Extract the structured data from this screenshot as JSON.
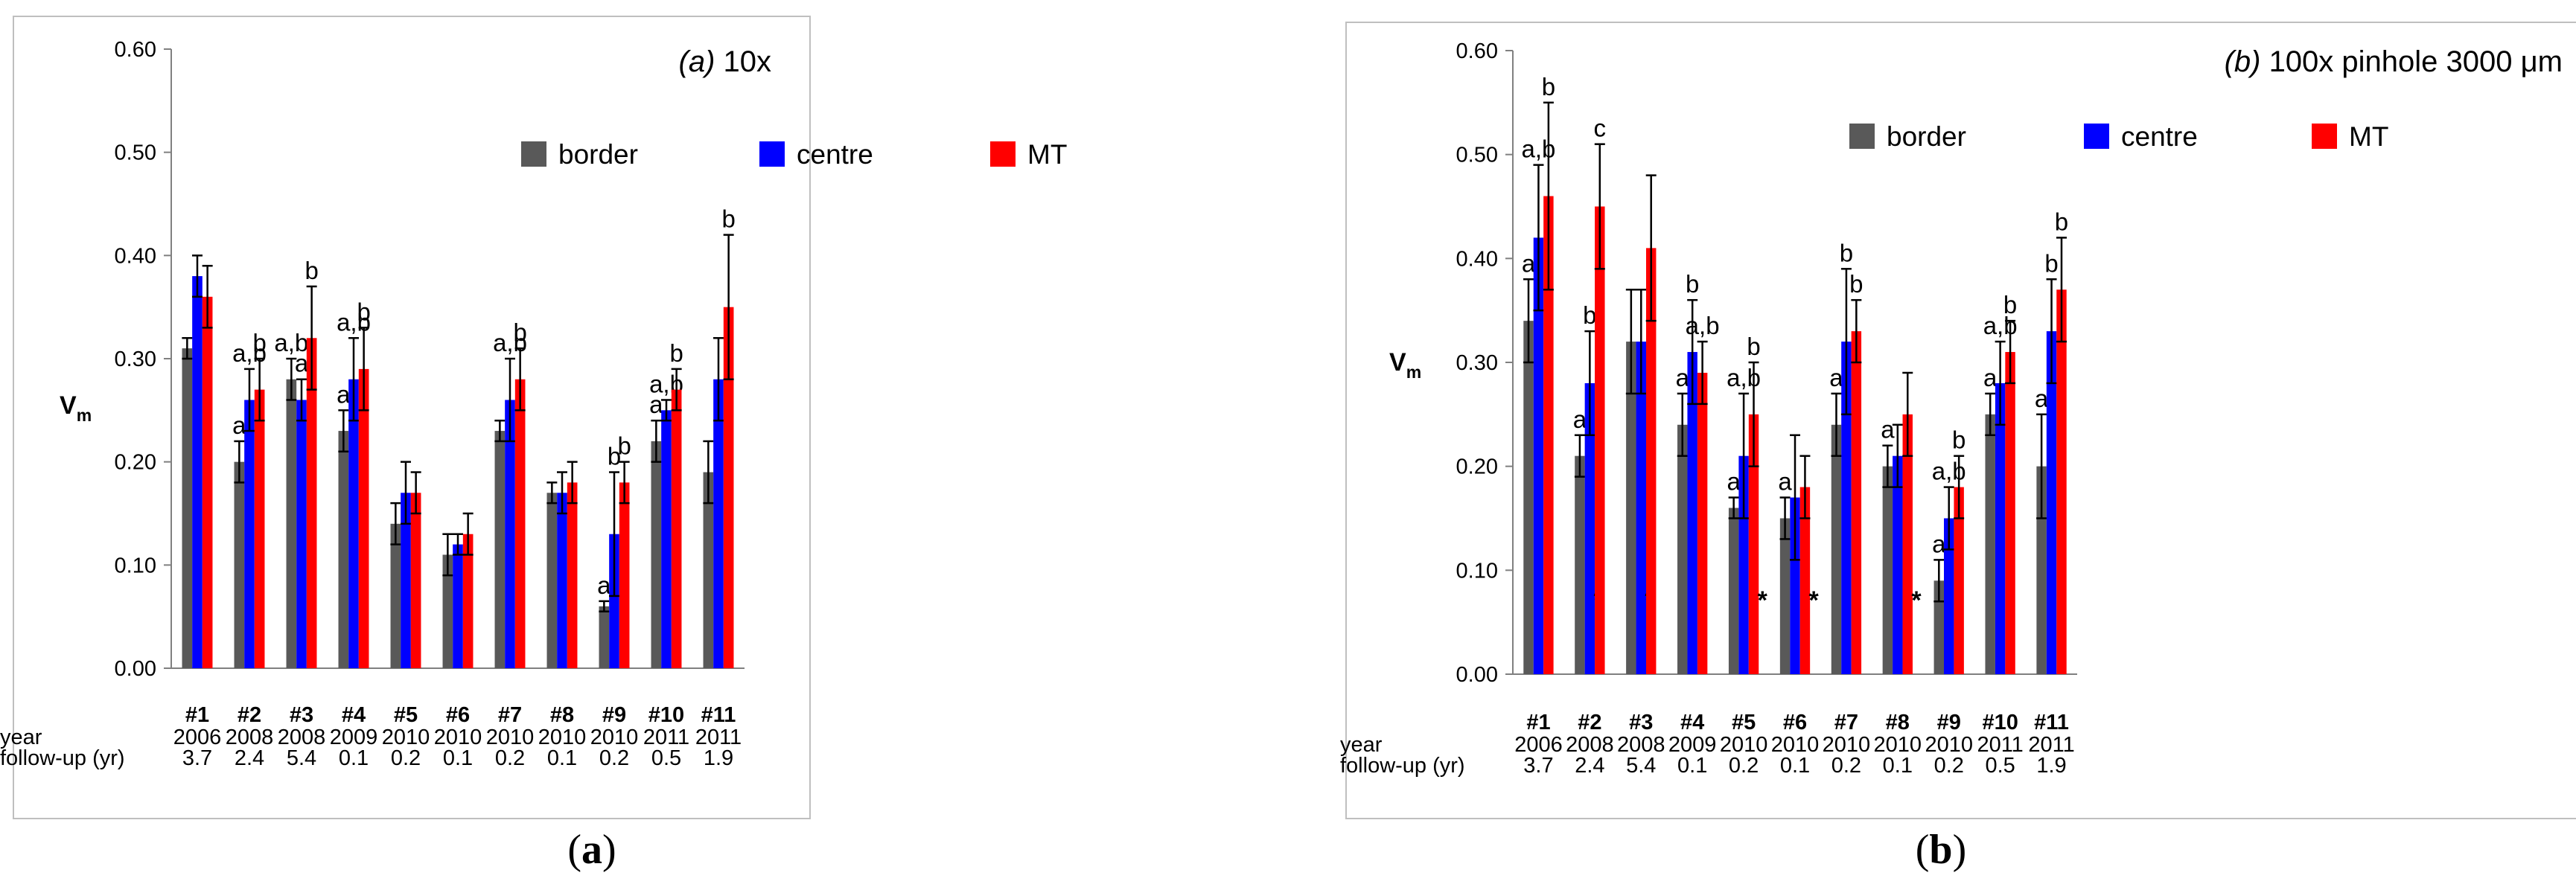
{
  "colors": {
    "border": "#595959",
    "centre": "#0000ff",
    "MT": "#ff0000",
    "axis": "#808080",
    "frame": "#bfbfbf"
  },
  "chart_data": [
    {
      "type": "bar",
      "panel_caption": "(a)",
      "title_prefix": "(a)",
      "title_suffix": "10x",
      "ylabel": "V",
      "ylabel_sub": "m",
      "ylim": [
        0,
        0.6
      ],
      "yticks": [
        "0.00",
        "0.10",
        "0.20",
        "0.30",
        "0.40",
        "0.50",
        "0.60"
      ],
      "grid": false,
      "legend_position": "top-right",
      "categories": [
        "#1",
        "#2",
        "#3",
        "#4",
        "#5",
        "#6",
        "#7",
        "#8",
        "#9",
        "#10",
        "#11"
      ],
      "row_labels": {
        "year": "year",
        "follow_up": "follow-up (yr)"
      },
      "years": [
        "2006",
        "2008",
        "2008",
        "2009",
        "2010",
        "2010",
        "2010",
        "2010",
        "2010",
        "2011",
        "2011"
      ],
      "follow_up": [
        "3.7",
        "2.4",
        "5.4",
        "0.1",
        "0.2",
        "0.1",
        "0.2",
        "0.1",
        "0.2",
        "0.5",
        "1.9"
      ],
      "series": [
        {
          "name": "border",
          "color": "#595959",
          "values": [
            0.31,
            0.2,
            0.28,
            0.23,
            0.14,
            0.11,
            0.23,
            0.17,
            0.06,
            0.22,
            0.19
          ],
          "errors": [
            0.01,
            0.02,
            0.02,
            0.02,
            0.02,
            0.02,
            0.01,
            0.01,
            0.005,
            0.02,
            0.03
          ],
          "labels": [
            "",
            "a",
            "a,b",
            "a",
            "",
            "",
            "",
            "",
            "a",
            "a",
            ""
          ],
          "stars": [
            false,
            false,
            false,
            false,
            false,
            false,
            false,
            false,
            false,
            false,
            false
          ]
        },
        {
          "name": "centre",
          "color": "#0000ff",
          "values": [
            0.38,
            0.26,
            0.26,
            0.28,
            0.17,
            0.12,
            0.26,
            0.17,
            0.13,
            0.25,
            0.28
          ],
          "errors": [
            0.02,
            0.03,
            0.02,
            0.04,
            0.03,
            0.01,
            0.04,
            0.02,
            0.06,
            0.01,
            0.04
          ],
          "labels": [
            "",
            "a,b",
            "a",
            "a,b",
            "",
            "",
            "a,b",
            "",
            "b",
            "a,b",
            ""
          ],
          "stars": [
            false,
            false,
            false,
            false,
            false,
            false,
            false,
            false,
            false,
            false,
            false
          ]
        },
        {
          "name": "MT",
          "color": "#ff0000",
          "values": [
            0.36,
            0.27,
            0.32,
            0.29,
            0.17,
            0.13,
            0.28,
            0.18,
            0.18,
            0.27,
            0.35
          ],
          "errors": [
            0.03,
            0.03,
            0.05,
            0.04,
            0.02,
            0.02,
            0.03,
            0.02,
            0.02,
            0.02,
            0.07
          ],
          "labels": [
            "",
            "b",
            "b",
            "b",
            "",
            "",
            "b",
            "",
            "b",
            "b",
            "b"
          ],
          "stars": [
            false,
            false,
            false,
            false,
            false,
            false,
            false,
            false,
            false,
            false,
            false
          ]
        }
      ]
    },
    {
      "type": "bar",
      "panel_caption": "(b)",
      "title_prefix": "(b)",
      "title_suffix": "100x pinhole 3000 μm",
      "ylabel": "V",
      "ylabel_sub": "m",
      "ylim": [
        0,
        0.6
      ],
      "yticks": [
        "0.00",
        "0.10",
        "0.20",
        "0.30",
        "0.40",
        "0.50",
        "0.60"
      ],
      "grid": false,
      "legend_position": "top-right",
      "categories": [
        "#1",
        "#2",
        "#3",
        "#4",
        "#5",
        "#6",
        "#7",
        "#8",
        "#9",
        "#10",
        "#11"
      ],
      "row_labels": {
        "year": "year",
        "follow_up": "follow-up (yr)"
      },
      "years": [
        "2006",
        "2008",
        "2008",
        "2009",
        "2010",
        "2010",
        "2010",
        "2010",
        "2010",
        "2011",
        "2011"
      ],
      "follow_up": [
        "3.7",
        "2.4",
        "5.4",
        "0.1",
        "0.2",
        "0.1",
        "0.2",
        "0.1",
        "0.2",
        "0.5",
        "1.9"
      ],
      "series": [
        {
          "name": "border",
          "color": "#595959",
          "values": [
            0.34,
            0.21,
            0.32,
            0.24,
            0.16,
            0.15,
            0.24,
            0.2,
            0.09,
            0.25,
            0.2
          ],
          "errors": [
            0.04,
            0.02,
            0.05,
            0.03,
            0.01,
            0.02,
            0.03,
            0.02,
            0.02,
            0.02,
            0.05
          ],
          "labels": [
            "a",
            "a",
            "",
            "a",
            "a",
            "a",
            "a",
            "a",
            "a",
            "a",
            "a"
          ],
          "stars": [
            false,
            false,
            false,
            false,
            false,
            false,
            false,
            false,
            false,
            false,
            false
          ]
        },
        {
          "name": "centre",
          "color": "#0000ff",
          "values": [
            0.42,
            0.28,
            0.32,
            0.31,
            0.21,
            0.17,
            0.32,
            0.21,
            0.15,
            0.28,
            0.33
          ],
          "errors": [
            0.07,
            0.05,
            0.05,
            0.05,
            0.06,
            0.06,
            0.07,
            0.03,
            0.03,
            0.04,
            0.05
          ],
          "labels": [
            "a,b",
            "b",
            "",
            "b",
            "a,b",
            "",
            "b",
            "",
            "a,b",
            "a,b",
            "b"
          ],
          "stars": [
            false,
            true,
            true,
            false,
            false,
            false,
            false,
            false,
            false,
            false,
            false
          ]
        },
        {
          "name": "MT",
          "color": "#ff0000",
          "values": [
            0.46,
            0.45,
            0.41,
            0.29,
            0.25,
            0.18,
            0.33,
            0.25,
            0.18,
            0.31,
            0.37
          ],
          "errors": [
            0.09,
            0.06,
            0.07,
            0.03,
            0.05,
            0.03,
            0.03,
            0.04,
            0.03,
            0.03,
            0.05
          ],
          "labels": [
            "b",
            "c",
            "",
            "a,b",
            "b",
            "",
            "b",
            "",
            "b",
            "b",
            "b"
          ],
          "stars": [
            false,
            false,
            false,
            false,
            true,
            true,
            false,
            true,
            false,
            false,
            false
          ]
        }
      ]
    }
  ]
}
